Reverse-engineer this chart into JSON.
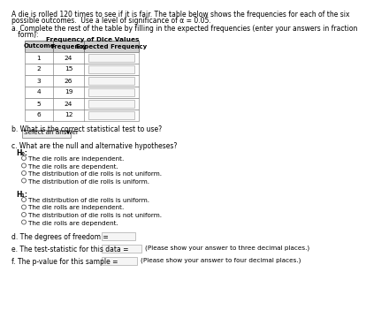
{
  "title_line1": "A die is rolled 120 times to see if it is fair. The table below shows the frequencies for each of the six",
  "title_line2": "possible outcomes.  Use a level of significance of α = 0.05.",
  "part_a_line1": "a. Complete the rest of the table by filling in the expected frequencies (enter your answers in fraction",
  "part_a_line2": "   form):",
  "table_title": "Frequency of Dice Values",
  "col_headers": [
    "Outcome",
    "Frequency",
    "Expected Frequency"
  ],
  "outcomes": [
    "1",
    "2",
    "3",
    "4",
    "5",
    "6"
  ],
  "frequencies": [
    "24",
    "15",
    "26",
    "19",
    "24",
    "12"
  ],
  "part_b_label": "b. What is the correct statistical test to use?",
  "select_answer": "Select an answer",
  "part_c_label": "c. What are the null and alternative hypotheses?",
  "ho_label": "H₀:",
  "ho_options": [
    "The die rolls are independent.",
    "The die rolls are dependent.",
    "The distribution of die rolls is not uniform.",
    "The distribution of die rolls is uniform."
  ],
  "ha_label": "H₁:",
  "ha_options": [
    "The distribution of die rolls is uniform.",
    "The die rolls are independent.",
    "The distribution of die rolls is not uniform.",
    "The die rolls are dependent."
  ],
  "part_d_label": "d. The degrees of freedom =",
  "part_e_label": "e. The test-statistic for this data =",
  "part_e_note": "(Please show your answer to three decimal places.)",
  "part_f_label": "f. The p-value for this sample =",
  "part_f_note": "(Please show your answer to four decimal places.)",
  "bg_color": "#ffffff",
  "text_color": "#000000",
  "table_header_bg": "#d0d0d0",
  "fs_title": 5.5,
  "fs_text": 5.5,
  "fs_table": 5.3,
  "fs_options": 5.2,
  "fs_bold": 5.5
}
